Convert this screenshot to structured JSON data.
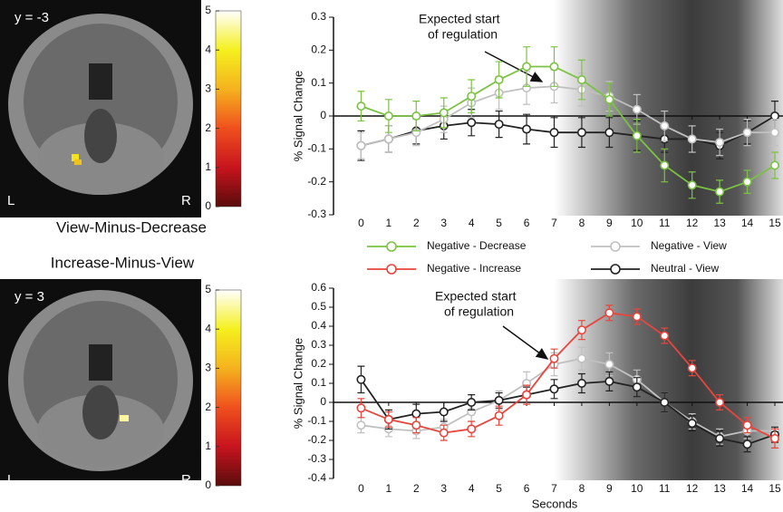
{
  "panels": [
    {
      "slice_label": "y = -3",
      "left": "L",
      "right": "R",
      "title": "View-Minus-Decrease",
      "colorbar_lim": [
        0,
        5
      ],
      "colorbar_ticks": [
        0,
        1,
        2,
        3,
        4,
        5
      ]
    },
    {
      "slice_label": "y = 3",
      "left": "L",
      "right": "R",
      "title": "Increase-Minus-View",
      "colorbar_lim": [
        0,
        5
      ],
      "colorbar_ticks": [
        0,
        1,
        2,
        3,
        4,
        5
      ]
    }
  ],
  "chart_data": [
    {
      "type": "line",
      "y_label": "% Signal Change",
      "annotation": [
        "Expected start",
        "of regulation"
      ],
      "x": [
        0,
        1,
        2,
        3,
        4,
        5,
        6,
        7,
        8,
        9,
        10,
        11,
        12,
        13,
        14,
        15
      ],
      "xlim": [
        -1,
        15
      ],
      "xticks": [
        0,
        1,
        2,
        3,
        4,
        5,
        6,
        7,
        8,
        9,
        10,
        11,
        12,
        13,
        14,
        15
      ],
      "ylim": [
        -0.3,
        0.3
      ],
      "yticks": [
        -0.3,
        -0.2,
        -0.1,
        0,
        0.1,
        0.2,
        0.3
      ],
      "series": [
        {
          "name": "Neutral - View",
          "color": "#222222",
          "values": [
            -0.09,
            -0.07,
            -0.045,
            -0.03,
            -0.02,
            -0.025,
            -0.04,
            -0.05,
            -0.05,
            -0.05,
            -0.06,
            -0.07,
            -0.07,
            -0.09,
            -0.05,
            0.0
          ],
          "errors": [
            0.045,
            0.04,
            0.04,
            0.04,
            0.04,
            0.04,
            0.045,
            0.045,
            0.045,
            0.045,
            0.045,
            0.04,
            0.04,
            0.04,
            0.035,
            0.045
          ]
        },
        {
          "name": "Negative - View",
          "color": "#c0c0c0",
          "values": [
            -0.09,
            -0.07,
            -0.05,
            -0.01,
            0.04,
            0.07,
            0.085,
            0.09,
            0.08,
            0.06,
            0.02,
            -0.03,
            -0.07,
            -0.08,
            -0.05,
            -0.05
          ],
          "errors": [
            0.04,
            0.04,
            0.04,
            0.04,
            0.045,
            0.05,
            0.05,
            0.05,
            0.05,
            0.045,
            0.045,
            0.045,
            0.04,
            0.04,
            0.04,
            0.04
          ]
        },
        {
          "name": "Negative - Decrease",
          "color": "#7cc242",
          "values": [
            0.03,
            0.0,
            0.0,
            0.01,
            0.06,
            0.11,
            0.15,
            0.15,
            0.11,
            0.05,
            -0.06,
            -0.15,
            -0.21,
            -0.23,
            -0.2,
            -0.15
          ],
          "errors": [
            0.045,
            0.05,
            0.045,
            0.045,
            0.05,
            0.055,
            0.06,
            0.06,
            0.06,
            0.05,
            0.05,
            0.05,
            0.04,
            0.035,
            0.035,
            0.04
          ]
        }
      ]
    },
    {
      "type": "line",
      "y_label": "% Signal Change",
      "x_label": "Seconds",
      "annotation": [
        "Expected start",
        "of regulation"
      ],
      "x": [
        0,
        1,
        2,
        3,
        4,
        5,
        6,
        7,
        8,
        9,
        10,
        11,
        12,
        13,
        14,
        15
      ],
      "xlim": [
        -1,
        15
      ],
      "xticks": [
        0,
        1,
        2,
        3,
        4,
        5,
        6,
        7,
        8,
        9,
        10,
        11,
        12,
        13,
        14,
        15
      ],
      "ylim": [
        -0.4,
        0.6
      ],
      "yticks": [
        -0.4,
        -0.3,
        -0.2,
        -0.1,
        0,
        0.1,
        0.2,
        0.3,
        0.4,
        0.5,
        0.6
      ],
      "series": [
        {
          "name": "Negative - View",
          "color": "#c0c0c0",
          "values": [
            -0.12,
            -0.14,
            -0.15,
            -0.13,
            -0.05,
            0.01,
            0.1,
            0.2,
            0.23,
            0.2,
            0.12,
            0.0,
            -0.1,
            -0.18,
            -0.15,
            -0.15
          ],
          "errors": [
            0.04,
            0.04,
            0.04,
            0.04,
            0.05,
            0.05,
            0.06,
            0.06,
            0.06,
            0.06,
            0.05,
            0.05,
            0.04,
            0.04,
            0.04,
            0.04
          ]
        },
        {
          "name": "Neutral - View",
          "color": "#222222",
          "values": [
            0.12,
            -0.09,
            -0.06,
            -0.05,
            0.0,
            0.01,
            0.04,
            0.07,
            0.1,
            0.11,
            0.08,
            0.0,
            -0.11,
            -0.19,
            -0.22,
            -0.17
          ],
          "errors": [
            0.07,
            0.05,
            0.05,
            0.05,
            0.04,
            0.04,
            0.04,
            0.05,
            0.05,
            0.05,
            0.05,
            0.05,
            0.04,
            0.04,
            0.04,
            0.04
          ]
        },
        {
          "name": "Negative - Increase",
          "color": "#e8453c",
          "values": [
            -0.03,
            -0.09,
            -0.12,
            -0.16,
            -0.14,
            -0.07,
            0.04,
            0.23,
            0.38,
            0.47,
            0.45,
            0.35,
            0.18,
            0.0,
            -0.12,
            -0.19
          ],
          "errors": [
            0.05,
            0.04,
            0.04,
            0.04,
            0.04,
            0.05,
            0.05,
            0.05,
            0.05,
            0.04,
            0.04,
            0.04,
            0.04,
            0.04,
            0.04,
            0.05
          ]
        }
      ]
    }
  ]
}
